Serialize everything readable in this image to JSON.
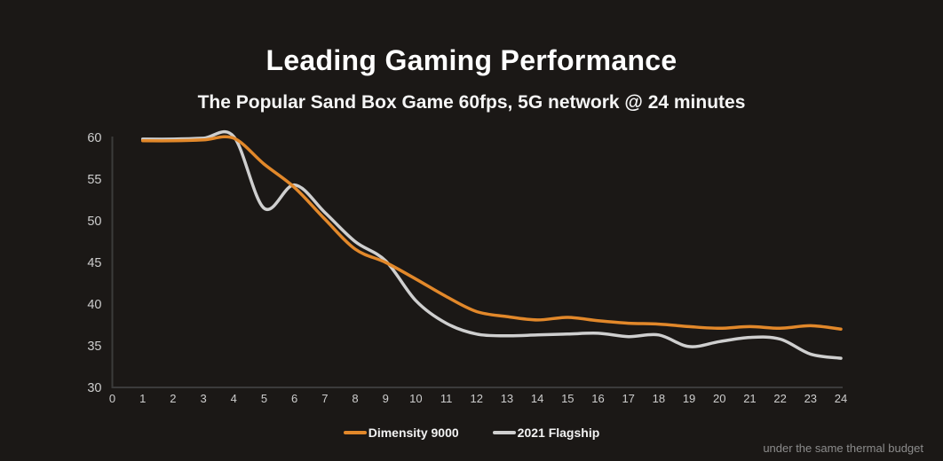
{
  "header": {
    "title": "Leading Gaming Performance",
    "subtitle": "The Popular Sand Box Game 60fps, 5G network @ 24 minutes"
  },
  "footer": {
    "note": "under the same thermal budget"
  },
  "colors": {
    "background": "#1b1816",
    "title_text": "#ffffff",
    "axis_line": "#3b3b3b",
    "tick_text": "#cdcdcd",
    "dimensity_orange": "#e2882a",
    "flagship_gray": "#cfcfcf",
    "footnote_text": "#8c8c8c"
  },
  "chart_data": {
    "type": "line",
    "title": "Leading Gaming Performance",
    "subtitle": "The Popular Sand Box Game 60fps, 5G network @ 24 minutes",
    "xlabel": "",
    "ylabel": "",
    "x": [
      1,
      2,
      3,
      4,
      5,
      6,
      7,
      8,
      9,
      10,
      11,
      12,
      13,
      14,
      15,
      16,
      17,
      18,
      19,
      20,
      21,
      22,
      23,
      24
    ],
    "series": [
      {
        "name": "Dimensity 9000",
        "color": "#e2882a",
        "values": [
          59.6,
          59.6,
          59.7,
          59.9,
          56.8,
          54.0,
          50.2,
          46.6,
          45.0,
          43.0,
          40.9,
          39.1,
          38.5,
          38.1,
          38.4,
          38.0,
          37.7,
          37.6,
          37.3,
          37.1,
          37.3,
          37.1,
          37.4,
          37.0
        ]
      },
      {
        "name": "2021 Flagship",
        "color": "#cfcfcf",
        "values": [
          59.8,
          59.8,
          59.9,
          60.1,
          51.5,
          54.3,
          51.0,
          47.5,
          45.2,
          40.4,
          37.7,
          36.4,
          36.2,
          36.3,
          36.4,
          36.5,
          36.1,
          36.3,
          34.9,
          35.5,
          36.0,
          35.8,
          34.0,
          33.5
        ]
      }
    ],
    "xlim": [
      0,
      24
    ],
    "ylim": [
      30,
      60
    ],
    "xtick_step": 1,
    "ytick_step": 5,
    "grid": false,
    "smooth": true,
    "legend_position": "bottom-center",
    "annotation": "under the same thermal budget"
  }
}
